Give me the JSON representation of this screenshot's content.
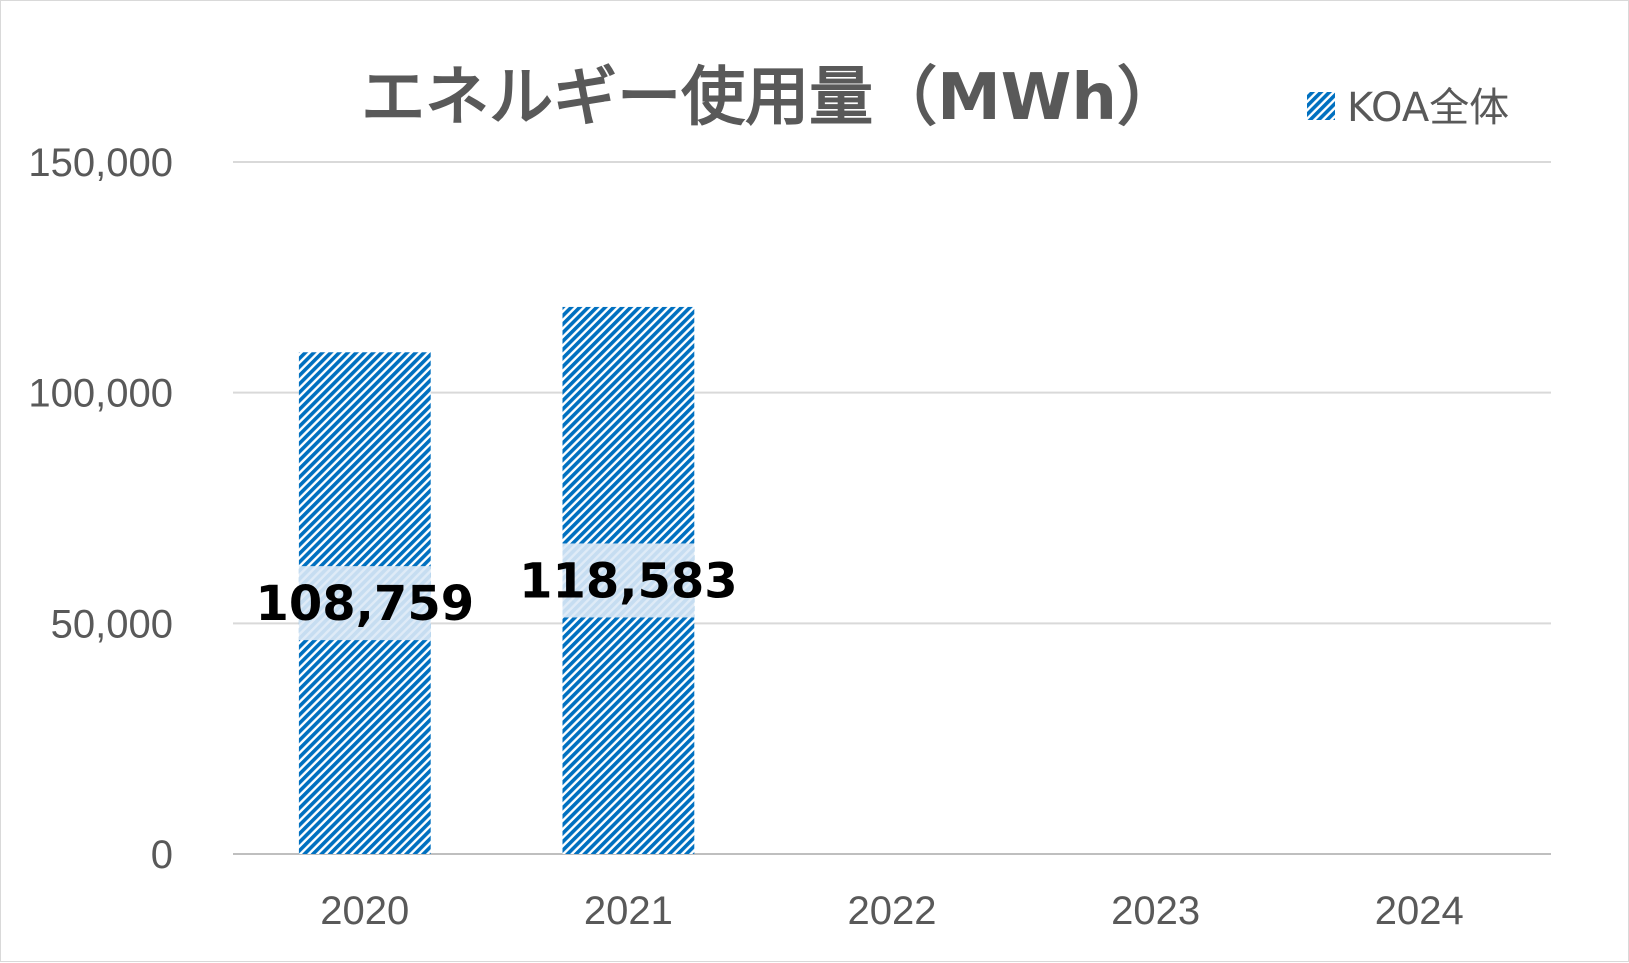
{
  "chart_data": {
    "type": "bar",
    "title": "エネルギー使用量（MWh）",
    "categories": [
      "2020",
      "2021",
      "2022",
      "2023",
      "2024"
    ],
    "series": [
      {
        "name": "KOA全体",
        "values": [
          108759,
          118583,
          null,
          null,
          null
        ],
        "color": "#0070c0"
      }
    ],
    "data_labels": [
      "108,759",
      "118,583"
    ],
    "ylim": [
      0,
      150000
    ],
    "yticks": [
      0,
      50000,
      100000,
      150000
    ],
    "ytick_labels": [
      "0",
      "50,000",
      "100,000",
      "150,000"
    ],
    "grid": true,
    "legend_position": "top-right",
    "bar_pattern": "diagonal-hatch"
  }
}
